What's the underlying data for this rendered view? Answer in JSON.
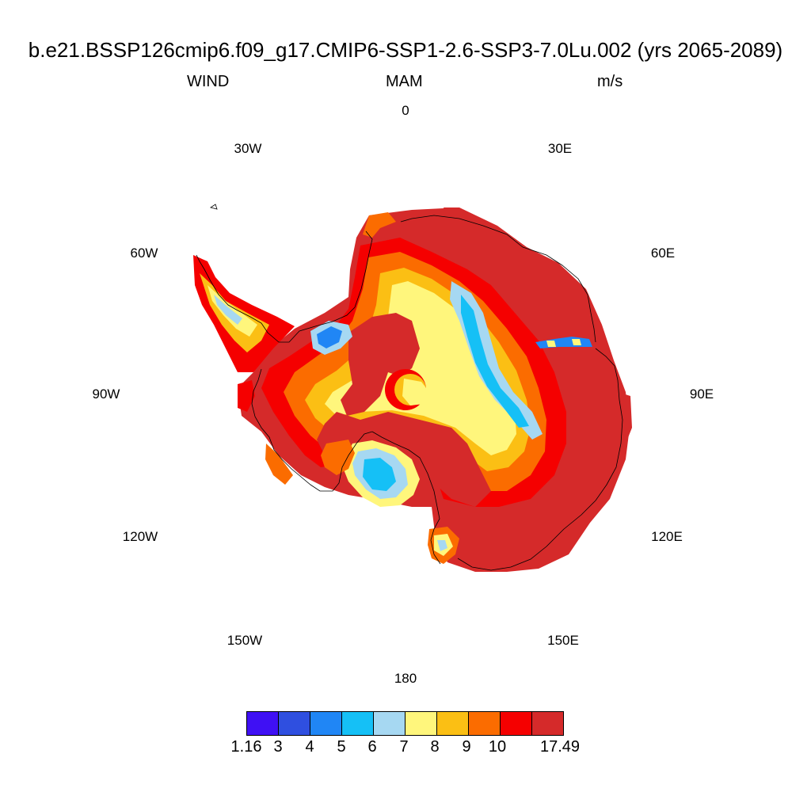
{
  "title": "b.e21.BSSP126cmip6.f09_g17.CMIP6-SSP1-2.6-SSP3-7.0Lu.002 (yrs 2065-2089)",
  "variable": "WIND",
  "season": "MAM",
  "units": "m/s",
  "longitude_labels": {
    "lon_0": "0",
    "lon_30e": "30E",
    "lon_60e": "60E",
    "lon_90e": "90E",
    "lon_120e": "120E",
    "lon_150e": "150E",
    "lon_180": "180",
    "lon_150w": "150W",
    "lon_120w": "120W",
    "lon_90w": "90W",
    "lon_60w": "60W",
    "lon_30w": "30W"
  },
  "colorbar": {
    "colors": [
      "#3f10f4",
      "#2f4fe0",
      "#2086f5",
      "#15c0f6",
      "#a6d8f2",
      "#fff67c",
      "#fbbf14",
      "#fb6c00",
      "#f50000",
      "#d52a2a"
    ],
    "labels": [
      "1.16",
      "3",
      "4",
      "5",
      "6",
      "7",
      "8",
      "9",
      "10",
      "17.49"
    ]
  },
  "map": {
    "projection": "south-polar-stereographic",
    "field": "wind speed over Antarctica",
    "ocean_color": "#ffffff",
    "coastline_color": "#000000"
  }
}
